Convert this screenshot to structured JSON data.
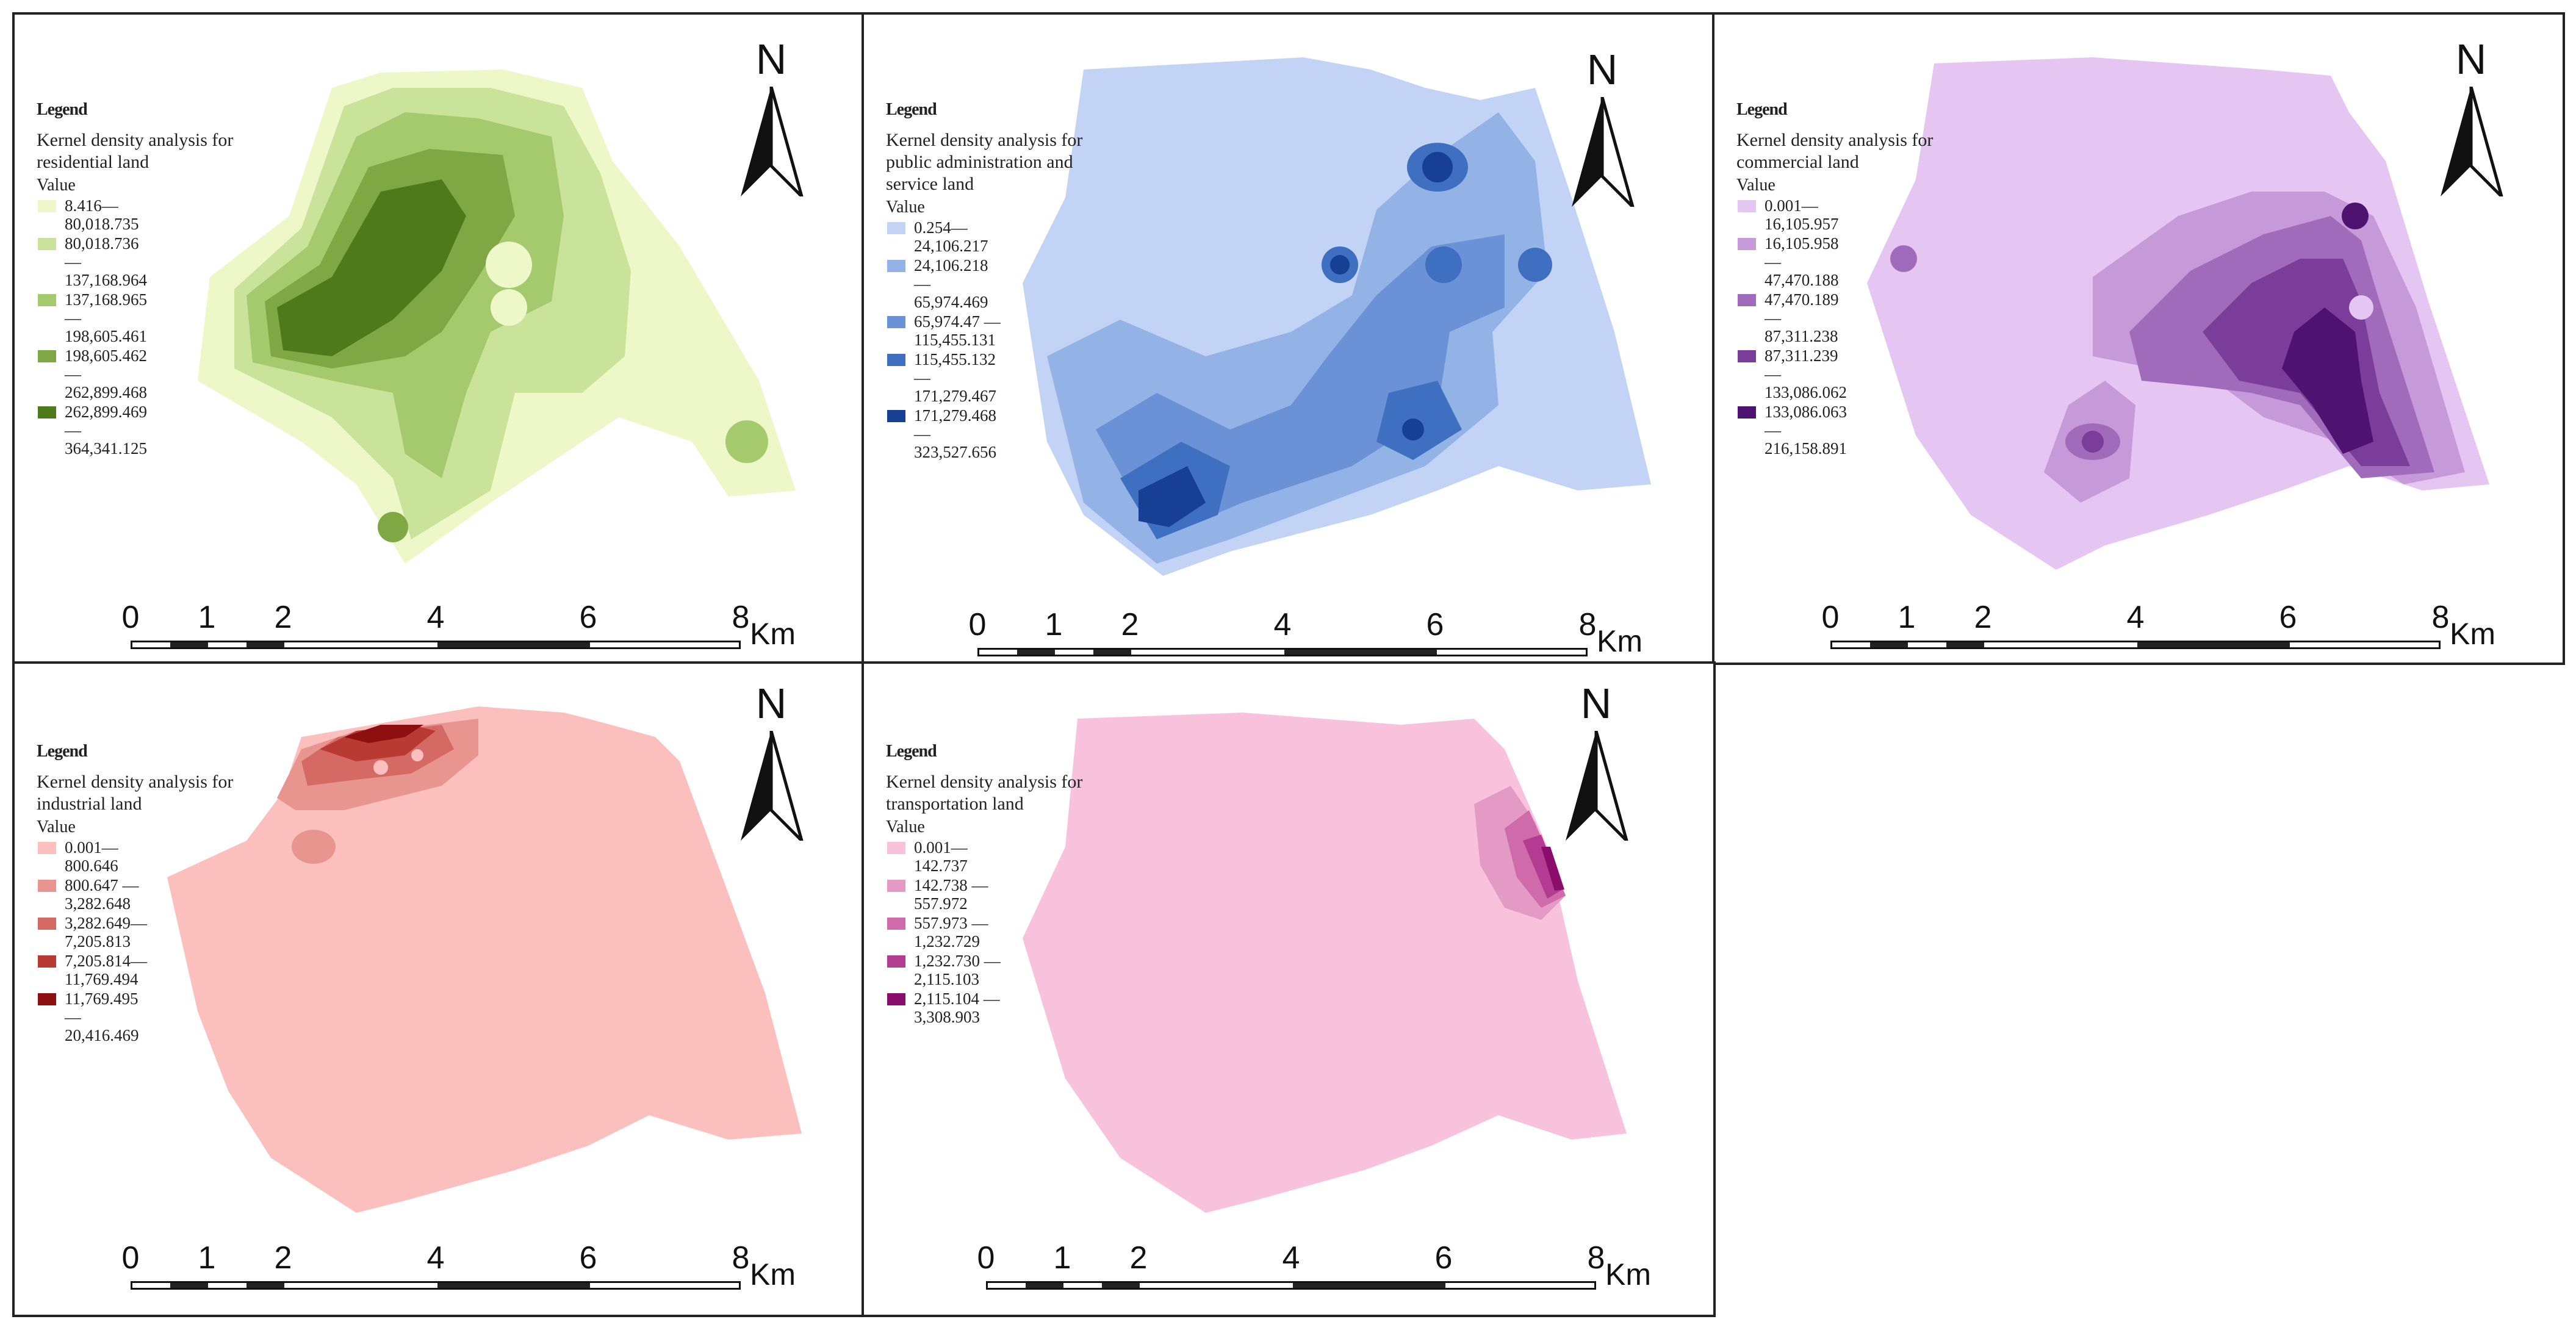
{
  "panels": [
    {
      "legend_header": "Legend",
      "legend_title": "Kernel density analysis for residential land",
      "value_label": "Value",
      "classes": [
        {
          "lines": [
            "8.416—",
            "80,018.735"
          ],
          "color": "#eef7c8"
        },
        {
          "lines": [
            "80,018.736",
            "—",
            "137,168.964"
          ],
          "color": "#c9e39a"
        },
        {
          "lines": [
            "137,168.965",
            "—",
            "198,605.461"
          ],
          "color": "#a5c96d"
        },
        {
          "lines": [
            "198,605.462",
            "—",
            "262,899.468"
          ],
          "color": "#7fa844"
        },
        {
          "lines": [
            "262,899.469",
            "—",
            "364,341.125"
          ],
          "color": "#4e7a1c"
        }
      ],
      "scale_ticks": [
        "0",
        "1",
        "2",
        "4",
        "6",
        "8"
      ],
      "scale_unit": "Km",
      "north_label": "N"
    },
    {
      "legend_header": "Legend",
      "legend_title": "Kernel density analysis for public administration and service land",
      "value_label": "Value",
      "classes": [
        {
          "lines": [
            "0.254—",
            "24,106.217"
          ],
          "color": "#c2d3f5"
        },
        {
          "lines": [
            "24,106.218",
            "—",
            "65,974.469"
          ],
          "color": "#93b2e6"
        },
        {
          "lines": [
            "65,974.47 —",
            "115,455.131"
          ],
          "color": "#6b92d6"
        },
        {
          "lines": [
            "115,455.132",
            "—",
            "171,279.467"
          ],
          "color": "#3f6fc0"
        },
        {
          "lines": [
            "171,279.468",
            "—",
            "323,527.656"
          ],
          "color": "#173f93"
        }
      ],
      "scale_ticks": [
        "0",
        "1",
        "2",
        "4",
        "6",
        "8"
      ],
      "scale_unit": "Km",
      "north_label": "N"
    },
    {
      "legend_header": "Legend",
      "legend_title": "Kernel density analysis for commercial land",
      "value_label": "Value",
      "classes": [
        {
          "lines": [
            "0.001—",
            "16,105.957"
          ],
          "color": "#e5c6f2"
        },
        {
          "lines": [
            "16,105.958",
            "—",
            "47,470.188"
          ],
          "color": "#c69ad9"
        },
        {
          "lines": [
            "47,470.189",
            "—",
            "87,311.238"
          ],
          "color": "#a06bbb"
        },
        {
          "lines": [
            "87,311.239",
            "—",
            "133,086.062"
          ],
          "color": "#7a3e9a"
        },
        {
          "lines": [
            "133,086.063",
            "—",
            "216,158.891"
          ],
          "color": "#4e1370"
        }
      ],
      "scale_ticks": [
        "0",
        "1",
        "2",
        "4",
        "6",
        "8"
      ],
      "scale_unit": "Km",
      "north_label": "N"
    },
    {
      "legend_header": "Legend",
      "legend_title": "Kernel density analysis for industrial land",
      "value_label": "Value",
      "classes": [
        {
          "lines": [
            "0.001—",
            "800.646"
          ],
          "color": "#fbc0bd"
        },
        {
          "lines": [
            "800.647 —",
            "3,282.648"
          ],
          "color": "#e89590"
        },
        {
          "lines": [
            "3,282.649—",
            "7,205.813"
          ],
          "color": "#d46a63"
        },
        {
          "lines": [
            "7,205.814—",
            "11,769.494"
          ],
          "color": "#b83a33"
        },
        {
          "lines": [
            "11,769.495",
            "—",
            "20,416.469"
          ],
          "color": "#8e0f0f"
        }
      ],
      "scale_ticks": [
        "0",
        "1",
        "2",
        "4",
        "6",
        "8"
      ],
      "scale_unit": "Km",
      "north_label": "N"
    },
    {
      "legend_header": "Legend",
      "legend_title": "Kernel density analysis for transportation land",
      "value_label": "Value",
      "classes": [
        {
          "lines": [
            "0.001—",
            "142.737"
          ],
          "color": "#f8c2dc"
        },
        {
          "lines": [
            "142.738 —",
            "557.972"
          ],
          "color": "#e39ac4"
        },
        {
          "lines": [
            "557.973 —",
            "1,232.729"
          ],
          "color": "#cf6bab"
        },
        {
          "lines": [
            "1,232.730 —",
            "2,115.103"
          ],
          "color": "#b33b92"
        },
        {
          "lines": [
            "2,115.104 —",
            "3,308.903"
          ],
          "color": "#8a0d6c"
        }
      ],
      "scale_ticks": [
        "0",
        "1",
        "2",
        "4",
        "6",
        "8"
      ],
      "scale_unit": "Km",
      "north_label": "N"
    }
  ]
}
